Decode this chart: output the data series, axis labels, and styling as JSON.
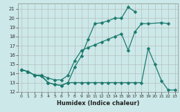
{
  "xlabel": "Humidex (Indice chaleur)",
  "bg_color": "#cce8e8",
  "grid_color": "#aaaaaa",
  "line_color": "#1a7a6e",
  "xlim": [
    -0.5,
    23.5
  ],
  "ylim": [
    12,
    21.6
  ],
  "yticks": [
    12,
    13,
    14,
    15,
    16,
    17,
    18,
    19,
    20,
    21
  ],
  "xticks": [
    0,
    1,
    2,
    3,
    4,
    5,
    6,
    7,
    8,
    9,
    10,
    11,
    12,
    13,
    14,
    15,
    16,
    17,
    18,
    19,
    20,
    21,
    22,
    23
  ],
  "line1_x": [
    0,
    1,
    2,
    3,
    4,
    5,
    6,
    7,
    8,
    9,
    10,
    11,
    12,
    13,
    14,
    15,
    16,
    17
  ],
  "line1_y": [
    14.4,
    14.2,
    13.8,
    13.7,
    13.0,
    12.8,
    12.7,
    13.0,
    14.7,
    15.9,
    17.7,
    19.4,
    19.5,
    19.7,
    20.0,
    20.0,
    21.2,
    20.7
  ],
  "line2_x": [
    0,
    1,
    2,
    3,
    4,
    5,
    6,
    7,
    8,
    9,
    10,
    11,
    12,
    13,
    14,
    15,
    16,
    17,
    18,
    19,
    21,
    22
  ],
  "line2_y": [
    14.4,
    14.2,
    13.8,
    13.8,
    13.5,
    13.3,
    13.3,
    13.8,
    15.4,
    16.5,
    16.8,
    17.1,
    17.4,
    17.7,
    18.0,
    18.3,
    16.5,
    18.5,
    19.4,
    19.4,
    19.5,
    19.4
  ],
  "line3_x": [
    0,
    1,
    2,
    3,
    4,
    5,
    6,
    7,
    8,
    9,
    10,
    11,
    12,
    13,
    14,
    15,
    16,
    17,
    18,
    19,
    20,
    21,
    22,
    23
  ],
  "line3_y": [
    14.4,
    14.2,
    13.8,
    13.8,
    13.0,
    12.8,
    12.7,
    13.0,
    13.0,
    13.0,
    13.0,
    13.0,
    13.0,
    13.0,
    13.0,
    13.0,
    13.0,
    13.0,
    13.0,
    16.7,
    15.0,
    13.2,
    12.2,
    12.2
  ],
  "marker": "D",
  "markersize": 2.5,
  "linewidth": 0.9
}
